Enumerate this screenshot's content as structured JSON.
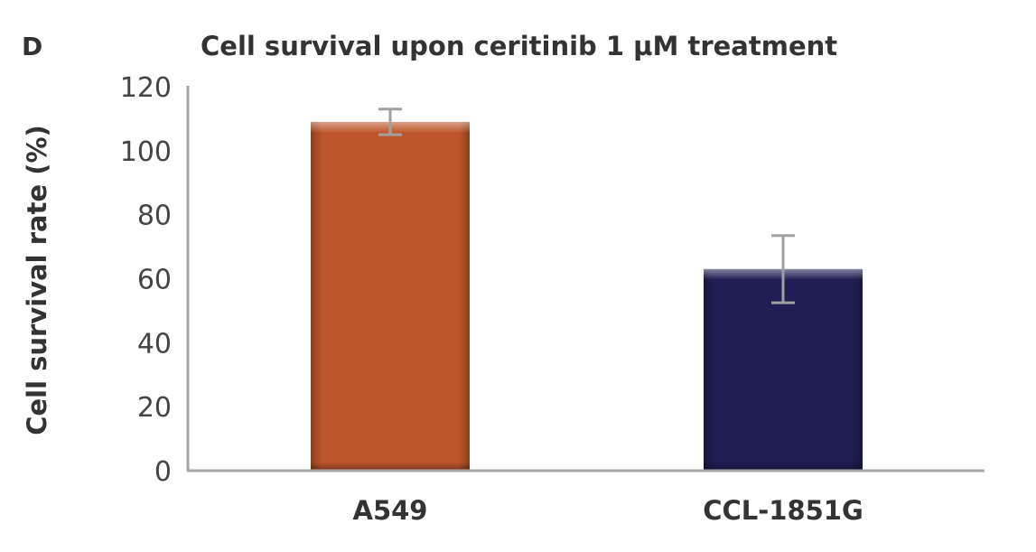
{
  "panel_label": "D",
  "chart_data": {
    "type": "bar",
    "title": "Cell survival upon ceritinib 1 µM treatment",
    "xlabel": "",
    "ylabel": "Cell survival rate (%)",
    "ylim": [
      0,
      120
    ],
    "yticks": [
      "0",
      "20",
      "40",
      "60",
      "80",
      "100",
      "120"
    ],
    "grid": false,
    "categories": [
      "A549",
      "CCL-1851G"
    ],
    "values": [
      109,
      63
    ],
    "errors": [
      4,
      10.5
    ],
    "colors": [
      "#bf562b",
      "#211e55"
    ]
  }
}
